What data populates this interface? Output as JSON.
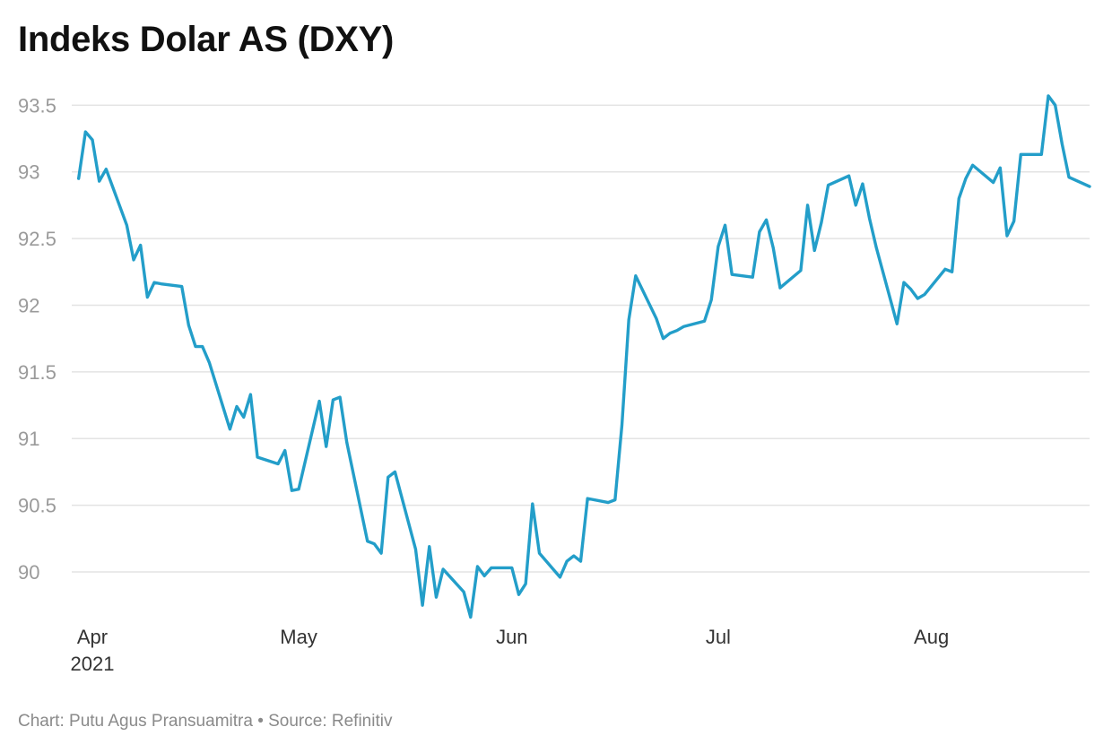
{
  "title": "Indeks Dolar AS (DXY)",
  "footer": "Chart: Putu Agus Pransuamitra • Source: Refinitiv",
  "colors": {
    "line": "#239ec9",
    "grid": "#e3e3e3",
    "ytick": "#9a9a9a",
    "xtick": "#333333"
  },
  "chart_data": {
    "type": "line",
    "title": "Indeks Dolar AS (DXY)",
    "xlabel": "",
    "ylabel": "",
    "ylim": [
      89.65,
      93.65
    ],
    "yticks": [
      90,
      90.5,
      91,
      91.5,
      92,
      92.5,
      93,
      93.5
    ],
    "ytick_labels": [
      "90",
      "90.5",
      "91",
      "91.5",
      "92",
      "92.5",
      "93",
      "93.5"
    ],
    "xlim": [
      "2021-03-29",
      "2021-08-24"
    ],
    "xticks": [
      {
        "date": "2021-04-01",
        "label": "Apr",
        "sublabel": "2021"
      },
      {
        "date": "2021-05-01",
        "label": "May",
        "sublabel": ""
      },
      {
        "date": "2021-06-01",
        "label": "Jun",
        "sublabel": ""
      },
      {
        "date": "2021-07-01",
        "label": "Jul",
        "sublabel": ""
      },
      {
        "date": "2021-08-01",
        "label": "Aug",
        "sublabel": ""
      }
    ],
    "grid": true,
    "legend": "none",
    "series": [
      {
        "x": [
          "2021-03-30",
          "2021-03-31",
          "2021-04-01",
          "2021-04-02",
          "2021-04-03",
          "2021-04-06",
          "2021-04-07",
          "2021-04-08",
          "2021-04-09",
          "2021-04-10",
          "2021-04-11",
          "2021-04-14",
          "2021-04-15",
          "2021-04-16",
          "2021-04-17",
          "2021-04-18",
          "2021-04-21",
          "2021-04-22",
          "2021-04-23",
          "2021-04-24",
          "2021-04-25",
          "2021-04-28",
          "2021-04-29",
          "2021-04-30",
          "2021-05-01",
          "2021-05-04",
          "2021-05-05",
          "2021-05-06",
          "2021-05-07",
          "2021-05-08",
          "2021-05-11",
          "2021-05-12",
          "2021-05-13",
          "2021-05-14",
          "2021-05-15",
          "2021-05-18",
          "2021-05-19",
          "2021-05-20",
          "2021-05-21",
          "2021-05-22",
          "2021-05-25",
          "2021-05-26",
          "2021-05-27",
          "2021-05-28",
          "2021-05-29",
          "2021-06-01",
          "2021-06-02",
          "2021-06-03",
          "2021-06-04",
          "2021-06-05",
          "2021-06-08",
          "2021-06-09",
          "2021-06-10",
          "2021-06-11",
          "2021-06-12",
          "2021-06-15",
          "2021-06-16",
          "2021-06-17",
          "2021-06-18",
          "2021-06-19",
          "2021-06-22",
          "2021-06-23",
          "2021-06-24",
          "2021-06-25",
          "2021-06-26",
          "2021-06-29",
          "2021-06-30",
          "2021-07-01",
          "2021-07-02",
          "2021-07-03",
          "2021-07-06",
          "2021-07-07",
          "2021-07-08",
          "2021-07-09",
          "2021-07-10",
          "2021-07-13",
          "2021-07-14",
          "2021-07-15",
          "2021-07-16",
          "2021-07-17",
          "2021-07-20",
          "2021-07-21",
          "2021-07-22",
          "2021-07-23",
          "2021-07-24",
          "2021-07-27",
          "2021-07-28",
          "2021-07-29",
          "2021-07-30",
          "2021-07-31",
          "2021-08-03",
          "2021-08-04",
          "2021-08-05",
          "2021-08-06",
          "2021-08-07",
          "2021-08-10",
          "2021-08-11",
          "2021-08-12",
          "2021-08-13",
          "2021-08-14",
          "2021-08-17",
          "2021-08-18",
          "2021-08-19",
          "2021-08-20",
          "2021-08-21",
          "2021-08-24"
        ],
        "y": [
          92.95,
          93.3,
          93.24,
          92.93,
          93.02,
          92.6,
          92.34,
          92.45,
          92.06,
          92.17,
          92.16,
          92.14,
          91.85,
          91.69,
          91.69,
          91.57,
          91.07,
          91.24,
          91.16,
          91.33,
          90.86,
          90.81,
          90.91,
          90.61,
          90.62,
          91.28,
          90.94,
          91.29,
          91.31,
          90.97,
          90.23,
          90.21,
          90.14,
          90.71,
          90.75,
          90.17,
          89.75,
          90.19,
          89.81,
          90.02,
          89.85,
          89.66,
          90.04,
          89.97,
          90.03,
          90.03,
          89.83,
          89.91,
          90.51,
          90.14,
          89.96,
          90.08,
          90.12,
          90.08,
          90.55,
          90.52,
          90.54,
          91.1,
          91.89,
          92.22,
          91.9,
          91.75,
          91.79,
          91.81,
          91.84,
          91.88,
          92.04,
          92.44,
          92.6,
          92.23,
          92.21,
          92.55,
          92.64,
          92.43,
          92.13,
          92.26,
          92.75,
          92.41,
          92.62,
          92.9,
          92.97,
          92.75,
          92.91,
          92.65,
          92.43,
          91.86,
          92.17,
          92.12,
          92.05,
          92.08,
          92.27,
          92.25,
          92.8,
          92.95,
          93.05,
          92.92,
          93.03,
          92.52,
          92.63,
          93.13,
          93.13,
          93.57,
          93.5,
          93.21,
          92.96,
          92.89
        ]
      }
    ]
  }
}
